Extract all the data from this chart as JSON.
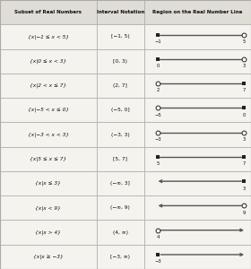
{
  "title_row": [
    "Subset of Real Numbers",
    "Interval Notation",
    "Region on the Real Number Line"
  ],
  "rows": [
    {
      "set_notation": "{x|−1 ≤ x < 5}",
      "interval": "[−1, 5)",
      "left_closed": true,
      "right_closed": false,
      "left_inf": false,
      "right_inf": false,
      "left_label": "−1",
      "right_label": "5"
    },
    {
      "set_notation": "{x|0 ≤ x < 3}",
      "interval": "[0, 3)",
      "left_closed": true,
      "right_closed": false,
      "left_inf": false,
      "right_inf": false,
      "left_label": "0",
      "right_label": "3"
    },
    {
      "set_notation": "{x|2 < x ≤ 7}",
      "interval": "(2, 7]",
      "left_closed": false,
      "right_closed": true,
      "left_inf": false,
      "right_inf": false,
      "left_label": "2",
      "right_label": "7"
    },
    {
      "set_notation": "{x|−5 < x ≤ 0}",
      "interval": "(−5, 0]",
      "left_closed": false,
      "right_closed": true,
      "left_inf": false,
      "right_inf": false,
      "left_label": "−5",
      "right_label": "0"
    },
    {
      "set_notation": "{x|−3 < x < 3}",
      "interval": "(−3, 3)",
      "left_closed": false,
      "right_closed": false,
      "left_inf": false,
      "right_inf": false,
      "left_label": "−3",
      "right_label": "3"
    },
    {
      "set_notation": "{x|5 ≤ x ≤ 7}",
      "interval": "[5, 7]",
      "left_closed": true,
      "right_closed": true,
      "left_inf": false,
      "right_inf": false,
      "left_label": "5",
      "right_label": "7"
    },
    {
      "set_notation": "{x|x ≤ 3}",
      "interval": "(−∞, 3]",
      "left_closed": false,
      "right_closed": true,
      "left_inf": true,
      "right_inf": false,
      "left_label": null,
      "right_label": "3"
    },
    {
      "set_notation": "{x|x < 9}",
      "interval": "(−∞, 9)",
      "left_closed": false,
      "right_closed": false,
      "left_inf": true,
      "right_inf": false,
      "left_label": null,
      "right_label": "9"
    },
    {
      "set_notation": "{x|x > 4}",
      "interval": "(4, ∞)",
      "left_closed": false,
      "right_closed": false,
      "left_inf": false,
      "right_inf": true,
      "left_label": "4",
      "right_label": null
    },
    {
      "set_notation": "{x|x ≥ −3}",
      "interval": "[−3, ∞)",
      "left_closed": true,
      "right_closed": false,
      "left_inf": false,
      "right_inf": true,
      "left_label": "−3",
      "right_label": null
    }
  ],
  "bg_color": "#f5f3ee",
  "header_bg": "#e0ddd6",
  "line_color": "#555555",
  "dot_filled_color": "#222222",
  "text_color": "#111111",
  "border_color": "#aaaaaa",
  "col_bounds": [
    0.0,
    0.385,
    0.575,
    1.0
  ]
}
